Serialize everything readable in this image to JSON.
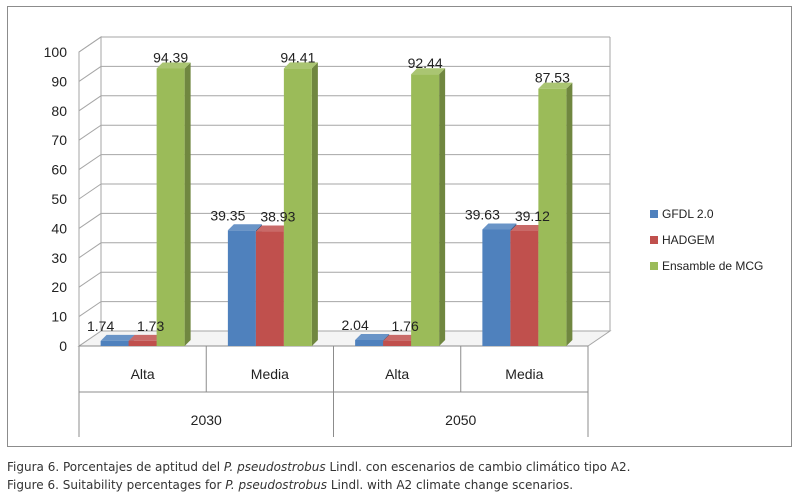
{
  "chart_data": {
    "type": "bar",
    "style": "3d-clustered-column",
    "groups": [
      {
        "label": "2030",
        "categories": [
          "Alta",
          "Media"
        ]
      },
      {
        "label": "2050",
        "categories": [
          "Alta",
          "Media"
        ]
      }
    ],
    "series": [
      {
        "name": "GFDL 2.0",
        "color": "#4f81bd",
        "values": [
          1.74,
          39.35,
          2.04,
          39.63
        ]
      },
      {
        "name": "HADGEM",
        "color": "#c0504d",
        "values": [
          1.73,
          38.93,
          1.76,
          39.12
        ]
      },
      {
        "name": "Ensamble de MCG",
        "color": "#9bbb59",
        "values": [
          94.39,
          94.41,
          92.44,
          87.53
        ]
      }
    ],
    "data_labels": [
      [
        "1.74",
        "39.35",
        "2.04",
        "39.63"
      ],
      [
        "1.73",
        "38.93",
        "1.76",
        "39.12"
      ],
      [
        "94.39",
        "94.41",
        "92.44",
        "87.53"
      ]
    ],
    "ylim": [
      0,
      100
    ],
    "yticks": [
      "0",
      "10",
      "20",
      "30",
      "40",
      "50",
      "60",
      "70",
      "80",
      "90",
      "100"
    ],
    "grid": true,
    "legend_position": "right"
  },
  "caption": {
    "es_prefix": "Figura 6. Porcentajes de aptitud del ",
    "es_species": "P. pseudostrobus",
    "es_suffix": " Lindl. con escenarios de cambio climático tipo A2.",
    "en_prefix": "Figure 6. Suitability percentages for ",
    "en_species": "P. pseudostrobus",
    "en_suffix": " Lindl. with A2 climate change scenarios."
  }
}
